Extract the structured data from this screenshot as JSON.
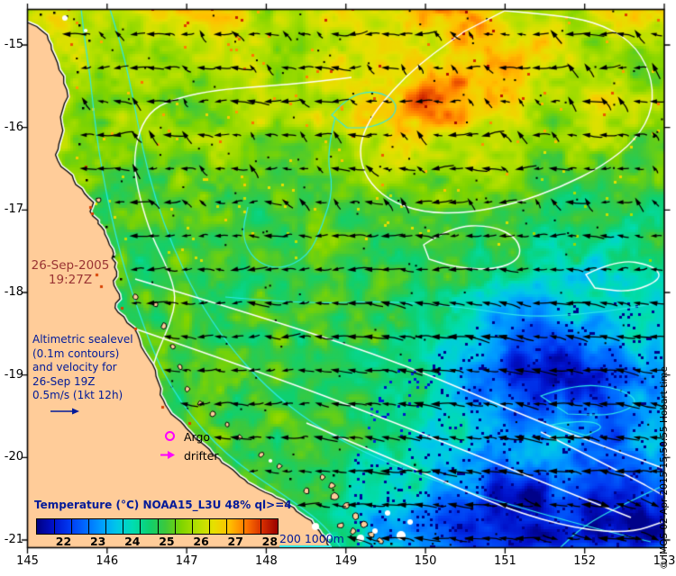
{
  "datestamp": {
    "line1": "26-Sep-2005",
    "line2": "19:27Z"
  },
  "annotation": {
    "line1": "Altimetric sealevel",
    "line2": "(0.1m contours)",
    "line3": "and velocity for",
    "line4": "26-Sep 19Z",
    "line5": "0.5m/s (1kt 12h)"
  },
  "legend_markers": {
    "argo": "Argo",
    "drifter": "drifter"
  },
  "isobath_label": "200 1000m",
  "credit": "© IMOS 02-Apr-2015 15:50:55 Hobart time",
  "colorbar": {
    "title": "Temperature (°C) NOAA15_L3U 48% ql>=4",
    "tick_labels": [
      "22",
      "23",
      "24",
      "25",
      "26",
      "27",
      "28"
    ],
    "range_min": 21.2,
    "range_max": 28.2,
    "gradient": [
      "#000082",
      "#0010c8",
      "#0038f0",
      "#0068ff",
      "#009cff",
      "#00c8e8",
      "#00ddb0",
      "#0ed070",
      "#3cc83c",
      "#7fd400",
      "#b4e000",
      "#e6e000",
      "#ffc000",
      "#ff7800",
      "#d83000",
      "#9a0000"
    ]
  },
  "axes": {
    "x_ticks": [
      "145",
      "146",
      "147",
      "148",
      "149",
      "150",
      "151",
      "152",
      "153"
    ],
    "y_ticks": [
      "-15",
      "-16",
      "-17",
      "-18",
      "-19",
      "-20",
      "-21"
    ]
  },
  "colors": {
    "land": "#ffcc99",
    "bathy_contour": "#2ee8e8",
    "sealevel_contour": "#ffffff",
    "vector": "#000000",
    "marker": "#ff00ff",
    "navy_text": "#001a99",
    "date_text": "#993333"
  },
  "chart_data": {
    "type": "heatmap",
    "title": "Temperature (°C) NOAA15_L3U 48% ql>=4",
    "x_ticks": [
      145,
      146,
      147,
      148,
      149,
      150,
      151,
      152,
      153
    ],
    "y_ticks": [
      -15,
      -16,
      -17,
      -18,
      -19,
      -20,
      -21
    ],
    "x_range": [
      145,
      153
    ],
    "y_range": [
      -21.1,
      -14.6
    ],
    "colorbar_range": [
      21.2,
      28.2
    ],
    "colorbar_tick_values": [
      22,
      23,
      24,
      25,
      26,
      27,
      28
    ],
    "legend_position": "bottom-left",
    "overlays": [
      "Altimetric sealevel (0.1m contours)",
      "velocity vectors, scale 0.5m/s (1kt 12h)",
      "200 1000m isobaths",
      "Argo",
      "drifter"
    ]
  }
}
